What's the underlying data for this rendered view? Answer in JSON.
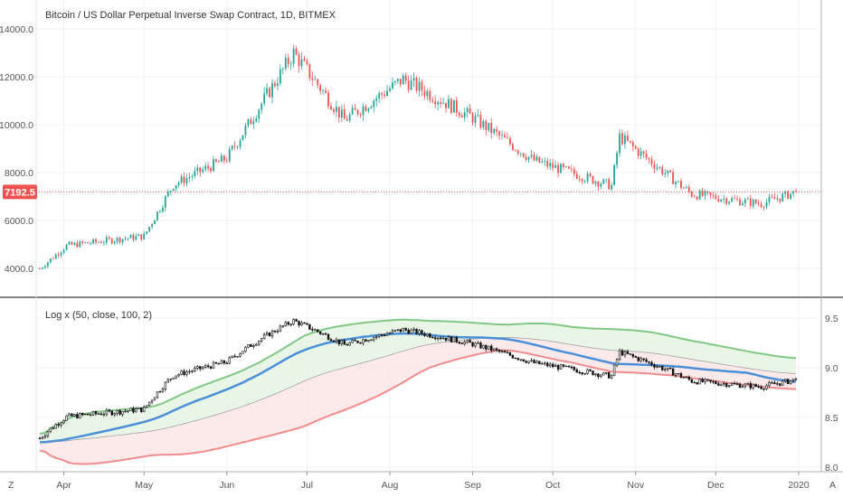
{
  "header": {
    "title": "Bitcoin / US Dollar Perpetual Inverse Swap Contract, 1D, BITMEX"
  },
  "indicator": {
    "title": "Log x (50, close, 100, 2)"
  },
  "price_label": {
    "value": "7192.5",
    "color": "#ef5350"
  },
  "price_axis": {
    "ticks": [
      "14000.0",
      "12000.0",
      "10000.0",
      "8000.0",
      "6000.0",
      "4000.0"
    ]
  },
  "indicator_axis": {
    "ticks": [
      "9.5",
      "9.0",
      "8.5",
      "8.0"
    ]
  },
  "time_axis": {
    "labels": [
      "Apr",
      "May",
      "Jun",
      "Jul",
      "Aug",
      "Sep",
      "Oct",
      "Nov",
      "Dec",
      "2020"
    ]
  },
  "buttons": {
    "left_corner": "Z",
    "right_corner": "A"
  },
  "colors": {
    "up": "#26a69a",
    "down": "#ef5350",
    "ma_fast": "#4a90d9",
    "band_upper": "#81c784",
    "band_lower": "#f28b8b"
  },
  "chart_data": {
    "type": "candlestick",
    "title": "Bitcoin / US Dollar Perpetual Inverse Swap Contract, 1D, BITMEX",
    "timeframe": "1D",
    "x_range": [
      "2019-03-23",
      "2019-12-31"
    ],
    "y_range": [
      3300,
      14200
    ],
    "last_price": 7192.5,
    "monthly_price_path": [
      {
        "date": "2019-03-23",
        "price": 3990
      },
      {
        "date": "2019-04-02",
        "price": 4950
      },
      {
        "date": "2019-05-01",
        "price": 5350
      },
      {
        "date": "2019-05-12",
        "price": 7500
      },
      {
        "date": "2019-06-01",
        "price": 8600
      },
      {
        "date": "2019-06-26",
        "price": 13000
      },
      {
        "date": "2019-07-15",
        "price": 10200
      },
      {
        "date": "2019-08-06",
        "price": 11900
      },
      {
        "date": "2019-09-01",
        "price": 10300
      },
      {
        "date": "2019-09-24",
        "price": 8500
      },
      {
        "date": "2019-10-23",
        "price": 7450
      },
      {
        "date": "2019-10-26",
        "price": 9500
      },
      {
        "date": "2019-11-22",
        "price": 7100
      },
      {
        "date": "2019-12-18",
        "price": 6700
      },
      {
        "date": "2019-12-31",
        "price": 7192.5
      }
    ],
    "indicator": {
      "name": "Log x",
      "params": [
        50,
        "close",
        100,
        2
      ],
      "y_range": [
        7.95,
        9.6
      ]
    }
  }
}
